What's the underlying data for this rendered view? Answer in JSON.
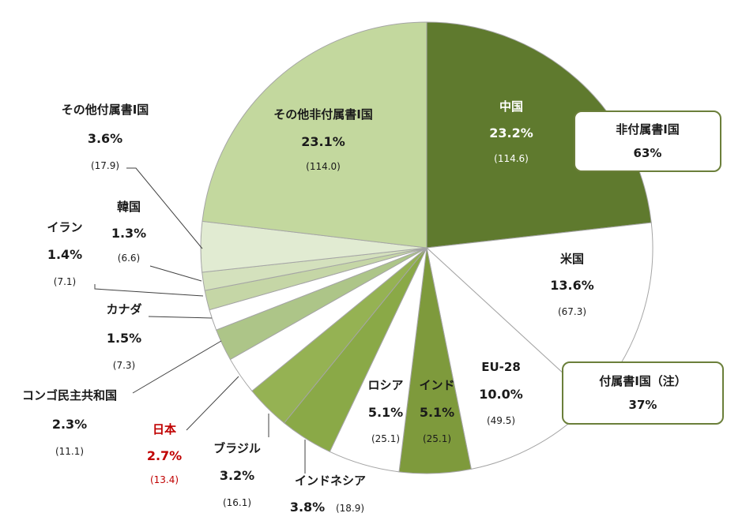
{
  "chart_data": {
    "type": "pie",
    "title": "",
    "slices": [
      {
        "name": "中国",
        "percent": "23.2%",
        "value": "(114.6)",
        "share": 23.2,
        "color": "#5f7a2e"
      },
      {
        "name": "米国",
        "percent": "13.6%",
        "value": "(67.3)",
        "share": 13.6,
        "color": "#ffffff"
      },
      {
        "name": "EU-28",
        "percent": "10.0%",
        "value": "(49.5)",
        "share": 10.0,
        "color": "#ffffff"
      },
      {
        "name": "インド",
        "percent": "5.1%",
        "value": "(25.1)",
        "share": 5.1,
        "color": "#7e9a3c"
      },
      {
        "name": "ロシア",
        "percent": "5.1%",
        "value": "(25.1)",
        "share": 5.1,
        "color": "#ffffff"
      },
      {
        "name": "インドネシア",
        "percent": "3.8%",
        "value": "(18.9)",
        "share": 3.8,
        "color": "#8aa947"
      },
      {
        "name": "ブラジル",
        "percent": "3.2%",
        "value": "(16.1)",
        "share": 3.2,
        "color": "#95b253"
      },
      {
        "name": "日本",
        "percent": "2.7%",
        "value": "(13.4)",
        "share": 2.7,
        "color": "#ffffff"
      },
      {
        "name": "コンゴ民主共和国",
        "percent": "2.3%",
        "value": "(11.1)",
        "share": 2.3,
        "color": "#adc588"
      },
      {
        "name": "カナダ",
        "percent": "1.5%",
        "value": "(7.3)",
        "share": 1.5,
        "color": "#ffffff"
      },
      {
        "name": "イラン",
        "percent": "1.4%",
        "value": "(7.1)",
        "share": 1.4,
        "color": "#c5d6a6"
      },
      {
        "name": "韓国",
        "percent": "1.3%",
        "value": "(6.6)",
        "share": 1.3,
        "color": "#d4e1bd"
      },
      {
        "name": "その他付属書I国",
        "percent": "3.6%",
        "value": "(17.9)",
        "share": 3.6,
        "color": "#e1ebd2"
      },
      {
        "name": "その他非付属書I国",
        "percent": "23.1%",
        "value": "(114.0)",
        "share": 23.1,
        "color": "#c3d89e"
      }
    ],
    "highlight_color": "#c00000",
    "border_color": "#a5a5a5"
  },
  "callouts": {
    "non_annex": {
      "line1": "非付属書I国",
      "line2": "63%"
    },
    "annex": {
      "line1": "付属書I国（注）",
      "line2": "37%"
    }
  }
}
